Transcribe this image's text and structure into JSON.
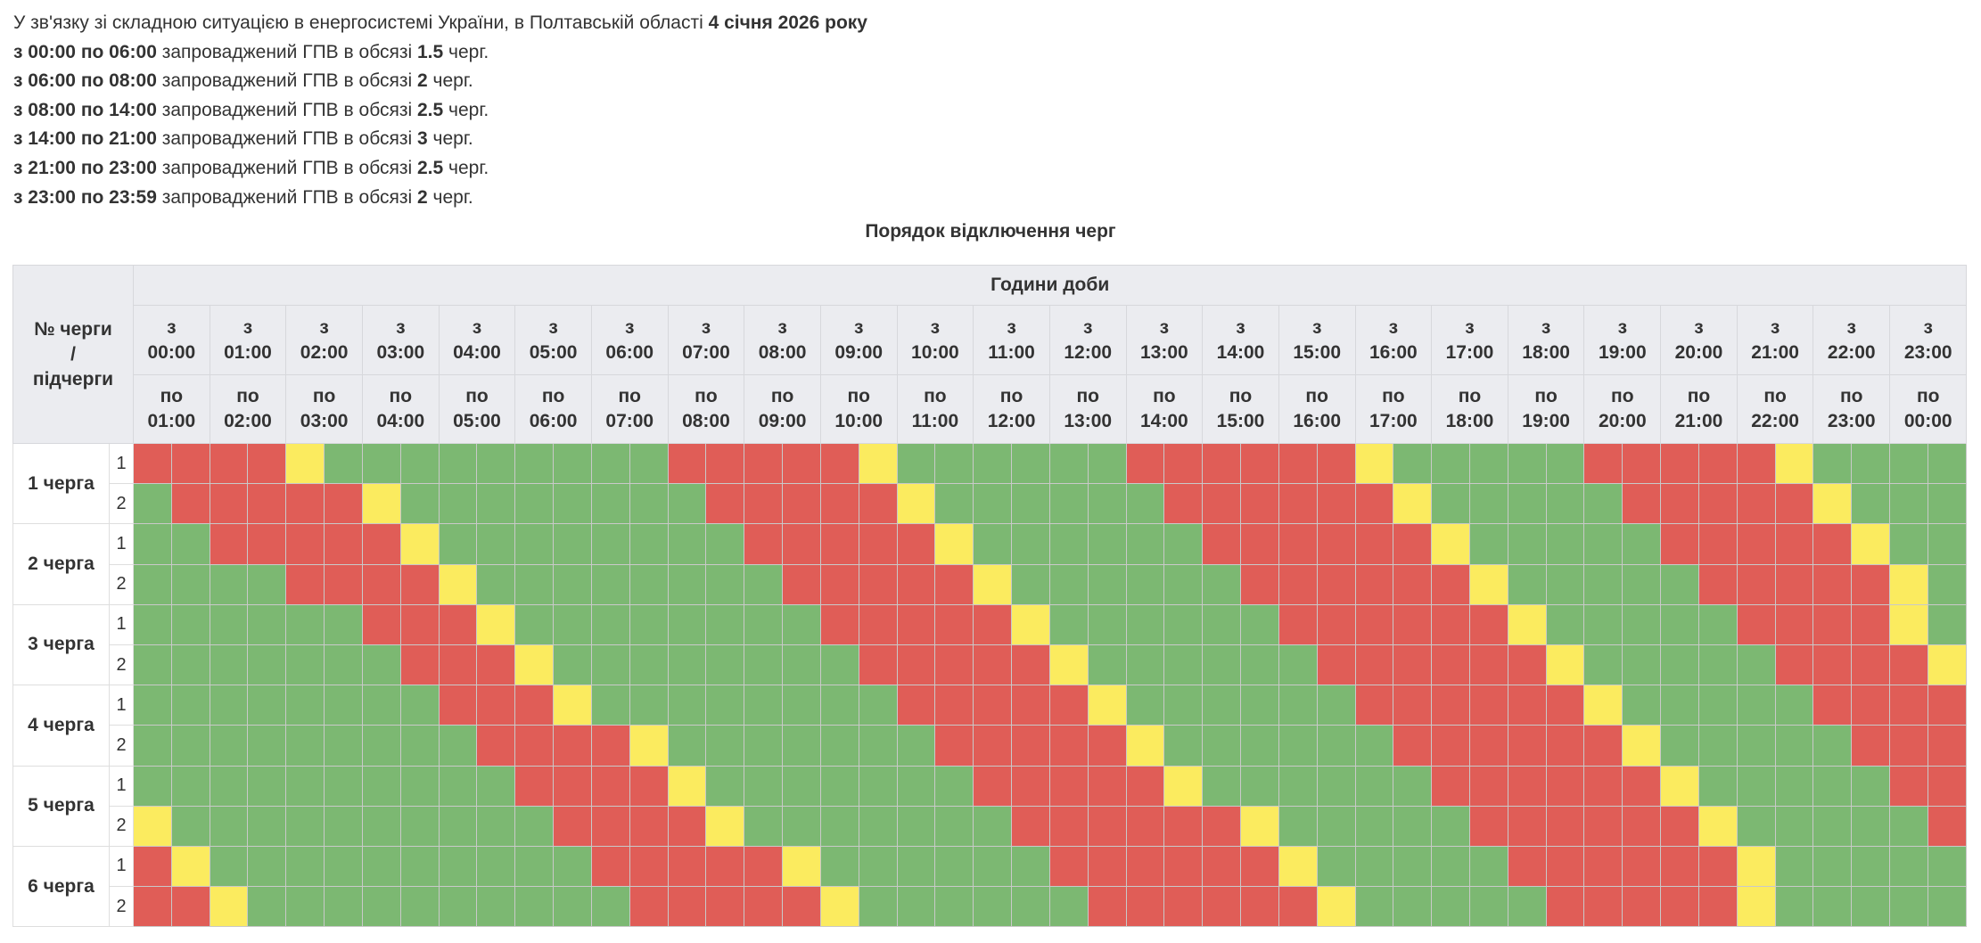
{
  "intro": {
    "text": "У зв'язку зі складною ситуацією в енергосистемі України, в Полтавській області ",
    "date": "4 січня 2026 року"
  },
  "periods": [
    {
      "range": "з 00:00 по 06:00",
      "text": " запроваджений ГПВ в обсязі ",
      "amount": "1.5",
      "suffix": " черг."
    },
    {
      "range": "з 06:00 по 08:00",
      "text": " запроваджений ГПВ в обсязі ",
      "amount": "2",
      "suffix": " черг."
    },
    {
      "range": "з 08:00 по 14:00",
      "text": " запроваджений ГПВ в обсязі ",
      "amount": "2.5",
      "suffix": " черг."
    },
    {
      "range": "з 14:00 по 21:00",
      "text": " запроваджений ГПВ в обсязі ",
      "amount": "3",
      "suffix": " черг."
    },
    {
      "range": "з 21:00 по 23:00",
      "text": " запроваджений ГПВ в обсязі ",
      "amount": "2.5",
      "suffix": " черг."
    },
    {
      "range": "з 23:00 по 23:59",
      "text": " запроваджений ГПВ в обсязі ",
      "amount": "2",
      "suffix": " черг."
    }
  ],
  "table": {
    "title": "Порядок відключення черг",
    "queue_header": [
      "№ черги",
      "/",
      "підчерги"
    ],
    "hours_header": "Години доби",
    "from_prefix": "з",
    "to_prefix": "по",
    "from_hours": [
      "00:00",
      "01:00",
      "02:00",
      "03:00",
      "04:00",
      "05:00",
      "06:00",
      "07:00",
      "08:00",
      "09:00",
      "10:00",
      "11:00",
      "12:00",
      "13:00",
      "14:00",
      "15:00",
      "16:00",
      "17:00",
      "18:00",
      "19:00",
      "20:00",
      "21:00",
      "22:00",
      "23:00"
    ],
    "to_hours": [
      "01:00",
      "02:00",
      "03:00",
      "04:00",
      "05:00",
      "06:00",
      "07:00",
      "08:00",
      "09:00",
      "10:00",
      "11:00",
      "12:00",
      "13:00",
      "14:00",
      "15:00",
      "16:00",
      "17:00",
      "18:00",
      "19:00",
      "20:00",
      "21:00",
      "22:00",
      "23:00",
      "00:00"
    ],
    "status_colors": {
      "R": "#e05d57",
      "G": "#7cb872",
      "Y": "#fbeb5f"
    },
    "status_meaning": {
      "R": "off",
      "G": "on",
      "Y": "possible"
    },
    "queues": [
      {
        "label": "1 черга",
        "subqueues": [
          {
            "label": "1",
            "slots": "RRRRYGGGGGGGGGRRRRRYGGGGGGRRRRRRYGGGGGRRRRRYGGGG"
          },
          {
            "label": "2",
            "slots": "GRRRRRYGGGGGGGGRRRRRYGGGGGGRRRRRRYGGGGGRRRRRYGGG"
          }
        ]
      },
      {
        "label": "2 черга",
        "subqueues": [
          {
            "label": "1",
            "slots": "GGRRRRRYGGGGGGGGRRRRRYGGGGGGRRRRRRYGGGGGRRRRRYGG"
          },
          {
            "label": "2",
            "slots": "GGGGRRRRYGGGGGGGGRRRRRYGGGGGGRRRRRRYGGGGGRRRRRYG"
          }
        ]
      },
      {
        "label": "3 черга",
        "subqueues": [
          {
            "label": "1",
            "slots": "GGGGGGRRRYGGGGGGGGRRRRRYGGGGGGRRRRRRYGGGGGRRRRYG"
          },
          {
            "label": "2",
            "slots": "GGGGGGGRRRYGGGGGGGGRRRRRYGGGGGGRRRRRRYGGGGGRRRRY"
          }
        ]
      },
      {
        "label": "4 черга",
        "subqueues": [
          {
            "label": "1",
            "slots": "GGGGGGGGRRRYGGGGGGGGRRRRRYGGGGGGRRRRRRYGGGGGRRRR"
          },
          {
            "label": "2",
            "slots": "GGGGGGGGGRRRRYGGGGGGGRRRRRYGGGGGGRRRRRRYGGGGGRRR"
          }
        ]
      },
      {
        "label": "5 черга",
        "subqueues": [
          {
            "label": "1",
            "slots": "GGGGGGGGGGRRRRYGGGGGGGRRRRRYGGGGGGRRRRRRYGGGGGRR"
          },
          {
            "label": "2",
            "slots": "YGGGGGGGGGGRRRRYGGGGGGGRRRRRRYGGGGGRRRRRRYGGGGGR"
          }
        ]
      },
      {
        "label": "6 черга",
        "subqueues": [
          {
            "label": "1",
            "slots": "RYGGGGGGGGGGRRRRRYGGGGGGRRRRRRYGGGGGRRRRRRYGGGGG"
          },
          {
            "label": "2",
            "slots": "RRYGGGGGGGGGGRRRRRYGGGGGGRRRRRRYGGGGGRRRRRYGGGGG"
          }
        ]
      }
    ]
  }
}
